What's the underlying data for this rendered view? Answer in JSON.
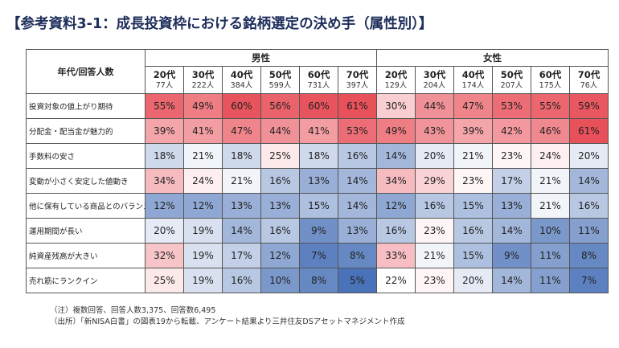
{
  "title": "【参考資料3-1：成長投資枠における銘柄選定の決め手（属性別）】",
  "header": {
    "row_header_label": "年代/回答人数",
    "groups": [
      {
        "label": "男性",
        "ages": [
          {
            "age": "20代",
            "count": "77人"
          },
          {
            "age": "30代",
            "count": "222人"
          },
          {
            "age": "40代",
            "count": "384人"
          },
          {
            "age": "50代",
            "count": "599人"
          },
          {
            "age": "60代",
            "count": "731人"
          },
          {
            "age": "70代",
            "count": "397人"
          }
        ]
      },
      {
        "label": "女性",
        "ages": [
          {
            "age": "20代",
            "count": "129人"
          },
          {
            "age": "30代",
            "count": "204人"
          },
          {
            "age": "40代",
            "count": "174人"
          },
          {
            "age": "50代",
            "count": "207人"
          },
          {
            "age": "60代",
            "count": "175人"
          },
          {
            "age": "70代",
            "count": "76人"
          }
        ]
      }
    ]
  },
  "rows": [
    {
      "label": "投資対象の値上がり期待",
      "values": [
        55,
        49,
        60,
        56,
        60,
        61,
        30,
        44,
        47,
        53,
        55,
        59
      ]
    },
    {
      "label": "分配金・配当金が魅力的",
      "values": [
        39,
        41,
        47,
        44,
        41,
        53,
        49,
        43,
        39,
        42,
        46,
        61
      ]
    },
    {
      "label": "手数料の安さ",
      "values": [
        18,
        21,
        18,
        25,
        18,
        16,
        14,
        20,
        21,
        23,
        24,
        20
      ]
    },
    {
      "label": "変動が小さく安定した値動き",
      "values": [
        34,
        24,
        21,
        16,
        13,
        14,
        34,
        29,
        23,
        17,
        21,
        14
      ]
    },
    {
      "label": "他に保有している商品とのバランス",
      "values": [
        12,
        12,
        13,
        13,
        15,
        14,
        12,
        16,
        15,
        13,
        21,
        16
      ]
    },
    {
      "label": "運用期間が長い",
      "values": [
        20,
        19,
        14,
        16,
        9,
        13,
        16,
        23,
        16,
        14,
        10,
        11
      ]
    },
    {
      "label": "純資産残高が大きい",
      "values": [
        32,
        19,
        17,
        12,
        7,
        8,
        33,
        21,
        15,
        9,
        11,
        8
      ]
    },
    {
      "label": "売れ筋にランクイン",
      "values": [
        25,
        19,
        16,
        10,
        8,
        5,
        22,
        23,
        20,
        14,
        11,
        7
      ]
    }
  ],
  "value_suffix": "%",
  "colors": {
    "high": "#e8505a",
    "mid": "#ffffff",
    "low": "#4a72b8",
    "title": "#1f2f5c"
  },
  "notes": [
    "（注）複数回答、回答人数3,375、回答数6,495",
    "（出所）「新NISA白書」の図表19から転載、アンケート結果より三井住友DSアセットマネジメント作成"
  ]
}
